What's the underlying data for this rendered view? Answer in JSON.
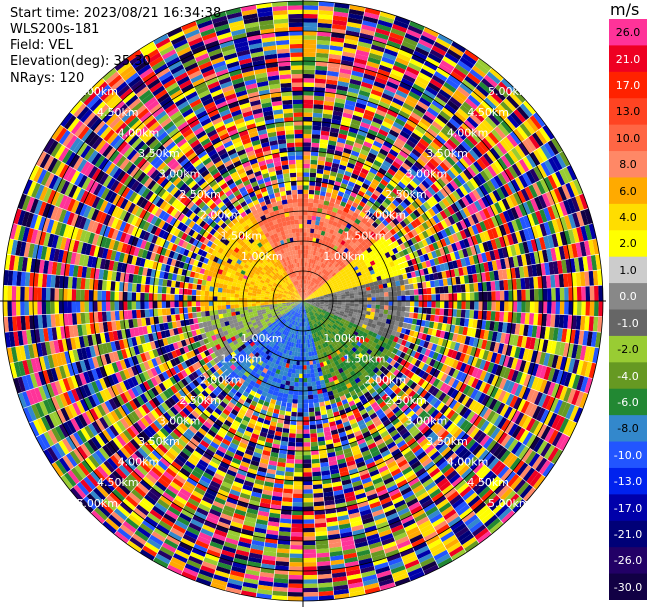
{
  "header": {
    "start_time": "Start time: 2023/08/21 16:34:38",
    "instrument": "WLS200s-181",
    "field": "Field: VEL",
    "elevation": "Elevation(deg): 35.30",
    "nrays": "NRays: 120"
  },
  "colorbar": {
    "unit": "m/s",
    "labels": [
      "26.0",
      "21.0",
      "17.0",
      "13.0",
      "10.0",
      "8.0",
      "6.0",
      "4.0",
      "2.0",
      "1.0",
      "0.0",
      "-1.0",
      "-2.0",
      "-4.0",
      "-6.0",
      "-8.0",
      "-10.0",
      "-13.0",
      "-17.0",
      "-21.0",
      "-26.0",
      "-30.0"
    ],
    "colors": [
      "#ff3399",
      "#ee0022",
      "#ff2200",
      "#ff4422",
      "#ff6644",
      "#ff8866",
      "#ffaa00",
      "#ffdd00",
      "#ffff00",
      "#cccccc",
      "#888888",
      "#666666",
      "#99cc33",
      "#669922",
      "#228833",
      "#3388cc",
      "#2255ff",
      "#0022ee",
      "#0000aa",
      "#000077",
      "#220066",
      "#110044"
    ]
  },
  "chart_data": {
    "type": "heatmap",
    "title": "",
    "polar": true,
    "rings_km": [
      0.5,
      1.0,
      1.5,
      2.0,
      2.5,
      3.0,
      3.5,
      4.0,
      4.5,
      5.0
    ],
    "ring_labels": [
      "1.00km",
      "1.50km",
      "2.00km",
      "2.50km",
      "3.00km",
      "3.50km",
      "4.00km",
      "4.50km",
      "5.00km"
    ],
    "max_range_km": 5.0,
    "nrays": 120,
    "colormap_range": [
      -30.0,
      26.0
    ],
    "regions": [
      {
        "sector": "north",
        "values_m_s": "8.0 to 13.0",
        "range_km": [
          0.0,
          1.6
        ]
      },
      {
        "sector": "west",
        "values_m_s": "2.0 to 6.0",
        "range_km": [
          0.0,
          1.0
        ]
      },
      {
        "sector": "east",
        "values_m_s": "-1.0 to 1.0",
        "range_km": [
          0.0,
          1.9
        ]
      },
      {
        "sector": "south",
        "values_m_s": "-8.0 to -10.0",
        "range_km": [
          0.0,
          1.7
        ]
      },
      {
        "sector": "southeast",
        "values_m_s": "-4.0 to -6.0",
        "range_km": [
          0.0,
          1.5
        ]
      },
      {
        "sector": "outer",
        "values_m_s": "noise",
        "range_km": [
          1.6,
          5.0
        ]
      }
    ]
  }
}
